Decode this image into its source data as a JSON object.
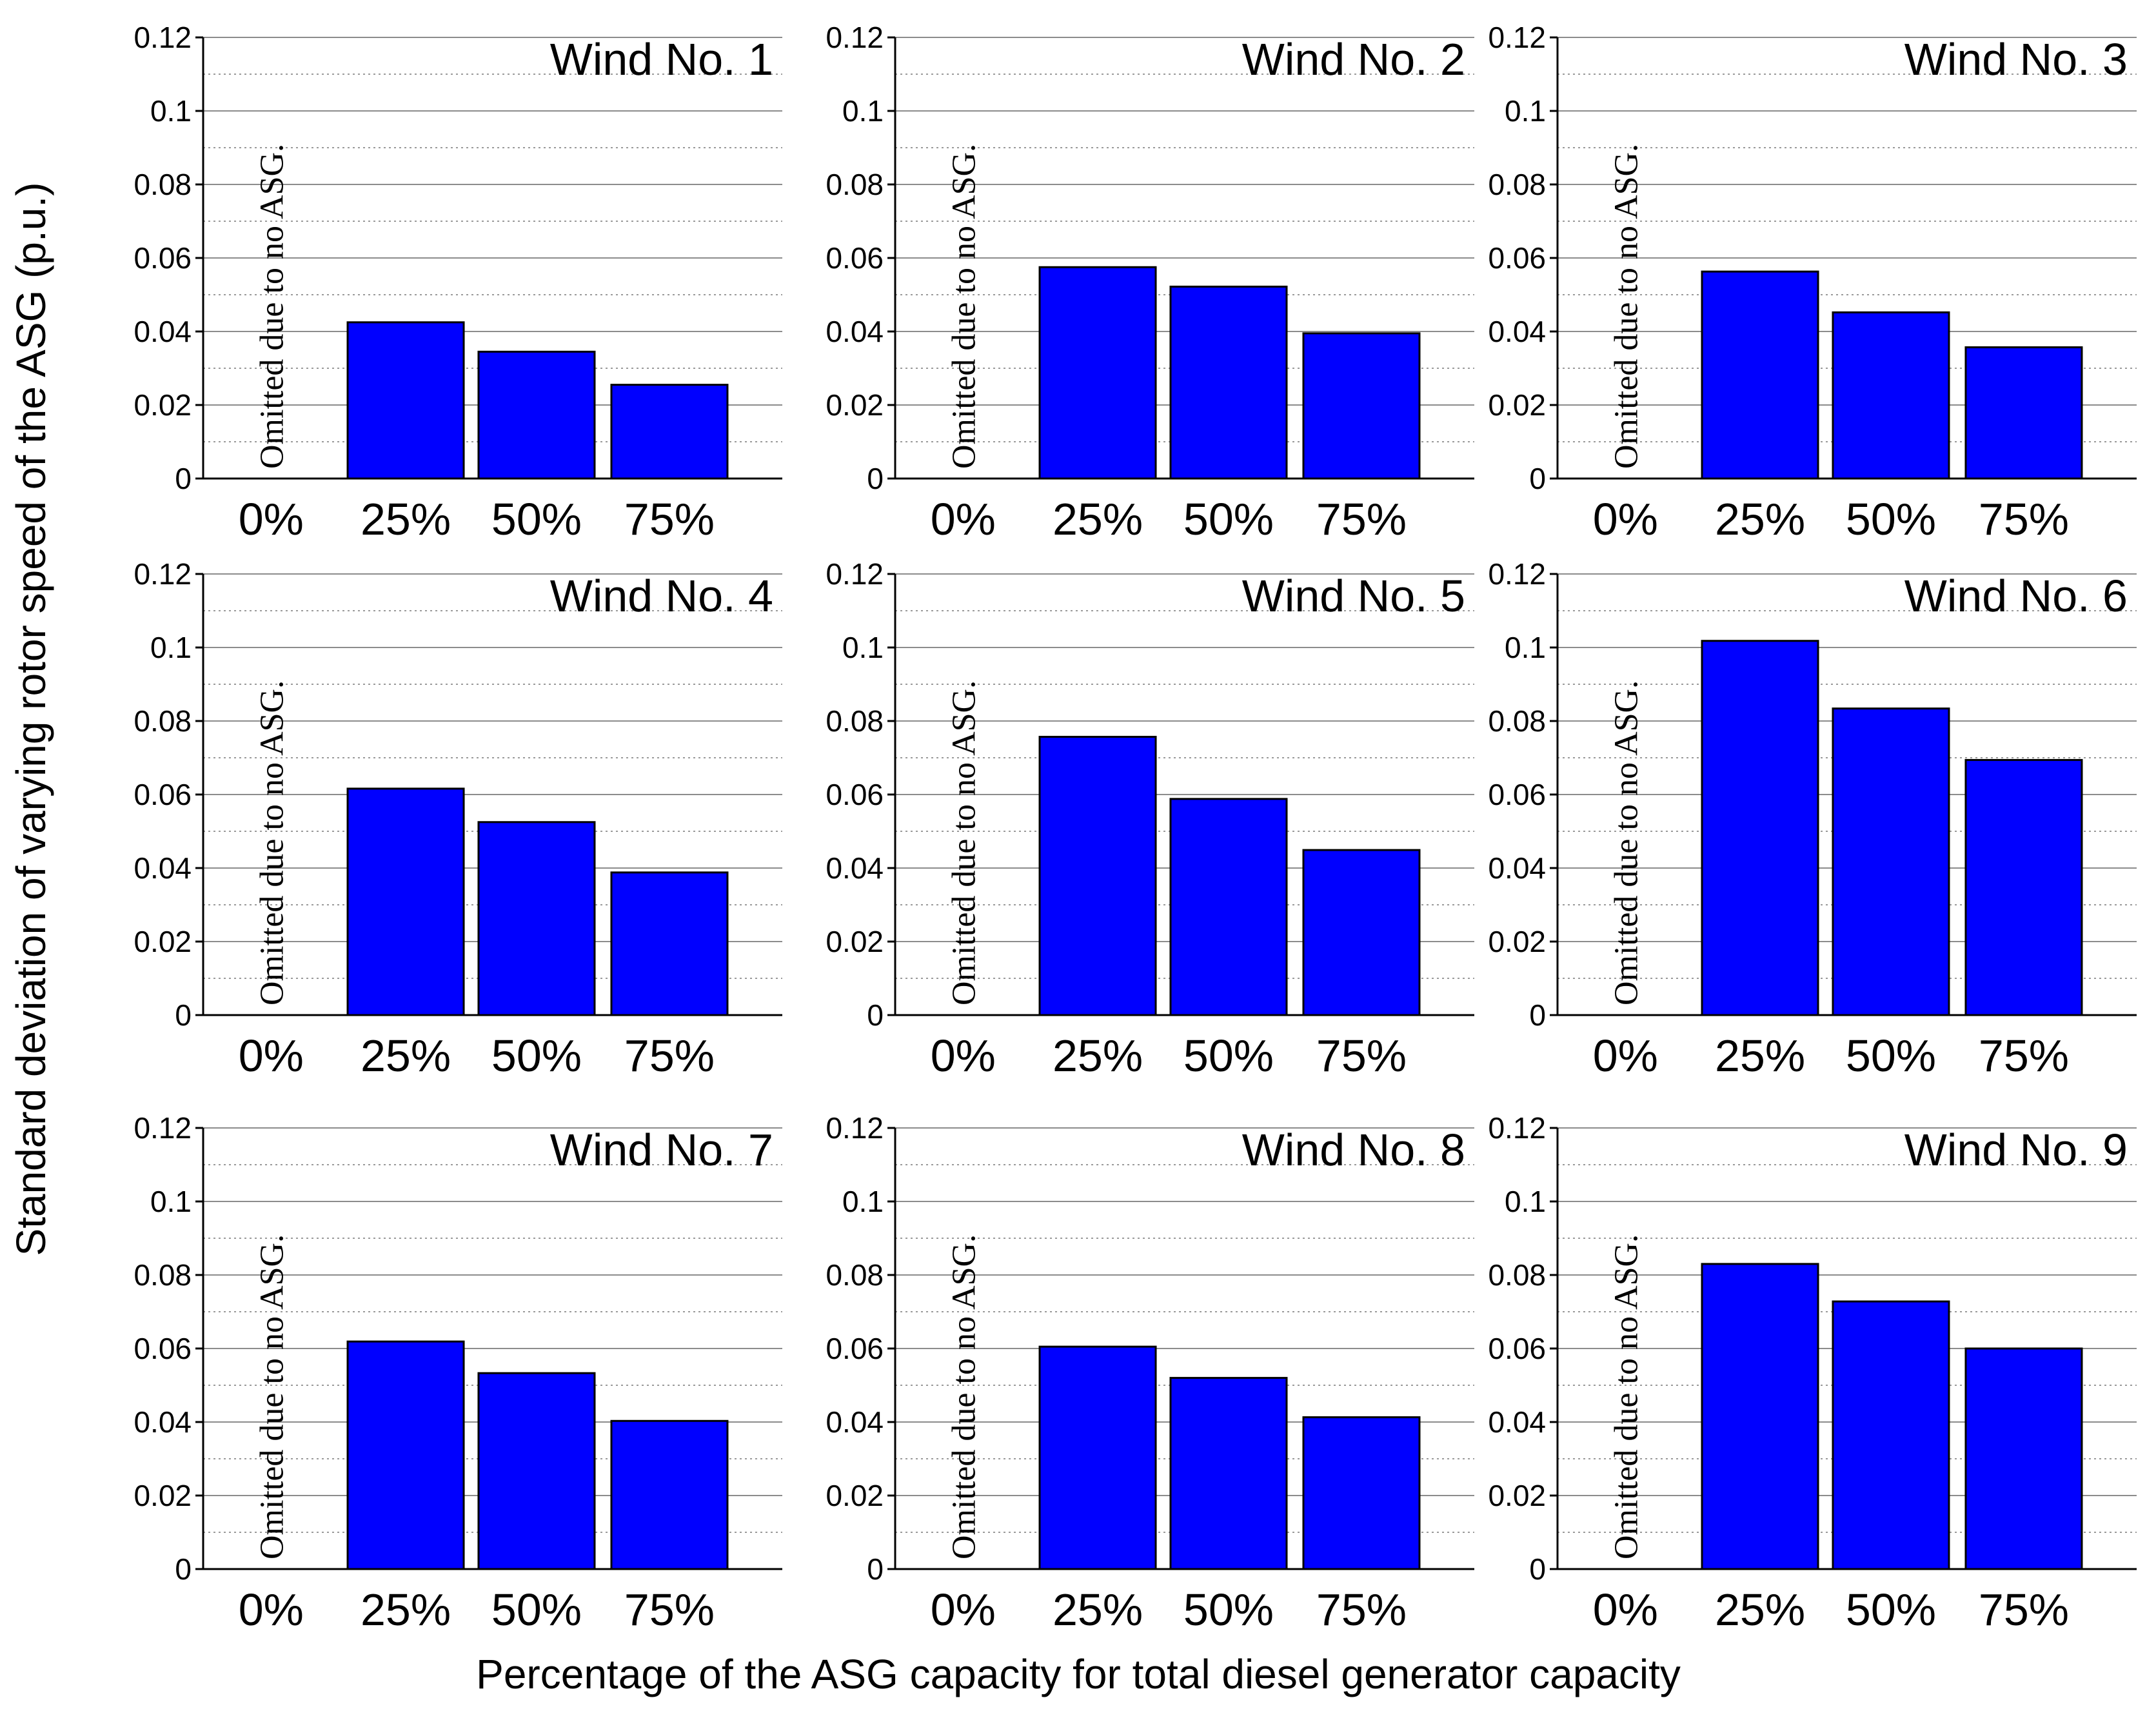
{
  "chart_data": {
    "type": "bar",
    "layout": "3x3 small multiples",
    "ylabel": "Standard deviation of varying rotor speed of the ASG (p.u.)",
    "xlabel": "Percentage of the ASG capacity for total diesel generator capacity",
    "categories": [
      "0%",
      "25%",
      "50%",
      "75%"
    ],
    "ylim": [
      0,
      0.12
    ],
    "yticks": [
      0,
      0.02,
      0.04,
      0.06,
      0.08,
      0.1,
      0.12
    ],
    "ytick_labels": [
      "0",
      "0.02",
      "0.04",
      "0.06",
      "0.08",
      "0.1",
      "0.12"
    ],
    "grid": "horizontal major solid, minor dotted",
    "bar_color": "#0000ff",
    "omitted_note": "Omitted due to no ASG.",
    "panels": [
      {
        "title": "Wind No. 1",
        "values": [
          null,
          0.0425,
          0.0345,
          0.0255
        ]
      },
      {
        "title": "Wind No. 2",
        "values": [
          null,
          0.0575,
          0.0522,
          0.0395
        ]
      },
      {
        "title": "Wind No. 3",
        "values": [
          null,
          0.0563,
          0.0452,
          0.0357
        ]
      },
      {
        "title": "Wind No. 4",
        "values": [
          null,
          0.0616,
          0.0525,
          0.0388
        ]
      },
      {
        "title": "Wind No. 5",
        "values": [
          null,
          0.0757,
          0.0588,
          0.0449
        ]
      },
      {
        "title": "Wind No. 6",
        "values": [
          null,
          0.1018,
          0.0834,
          0.0694
        ]
      },
      {
        "title": "Wind No. 7",
        "values": [
          null,
          0.0619,
          0.0533,
          0.0403
        ]
      },
      {
        "title": "Wind No. 8",
        "values": [
          null,
          0.0605,
          0.052,
          0.0413
        ]
      },
      {
        "title": "Wind No. 9",
        "values": [
          null,
          0.083,
          0.0728,
          0.06
        ]
      }
    ]
  }
}
